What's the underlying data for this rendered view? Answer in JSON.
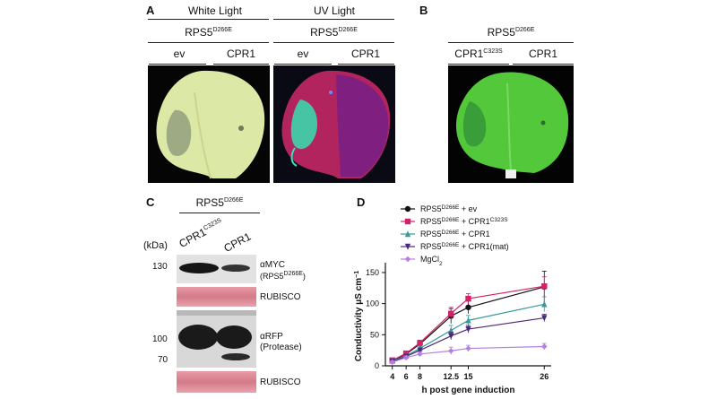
{
  "panelA": {
    "letter": "A",
    "white_light": "White Light",
    "uv_light": "UV Light",
    "construct_main": "RPS5",
    "construct_sup": "D266E",
    "ev": "ev",
    "cpr1": "CPR1"
  },
  "panelB": {
    "letter": "B",
    "construct_main": "RPS5",
    "construct_sup": "D266E",
    "left_main": "CPR1",
    "left_sup": "C323S",
    "right": "CPR1"
  },
  "panelC": {
    "letter": "C",
    "construct_main": "RPS5",
    "construct_sup": "D266E",
    "kda": "(kDa)",
    "lane1_main": "CPR1",
    "lane1_sup": "C323S",
    "lane2": "CPR1",
    "marker_130": "130",
    "marker_100": "100",
    "marker_70": "70",
    "amyc": "αMYC",
    "amyc_sub_main": "(RPS5",
    "amyc_sub_sup": "D266E",
    "amyc_sub_end": ")",
    "rubisco1": "RUBISCO",
    "arfp": "αRFP",
    "arfp_sub": "(Protease)",
    "rubisco2": "RUBISCO"
  },
  "panelD": {
    "letter": "D",
    "ylabel_main": "Conductivity μS cm",
    "ylabel_sup": "−1",
    "xlabel": "h post gene induction"
  },
  "chart_data": {
    "type": "line",
    "xlabel": "h post gene induction",
    "ylabel": "Conductivity μS cm−1",
    "xticks": [
      4,
      6,
      8,
      12.5,
      15,
      26
    ],
    "yticks": [
      0,
      50,
      100,
      150
    ],
    "ylim": [
      0,
      160
    ],
    "xlim": [
      3,
      27
    ],
    "grid": false,
    "legend_placement": "top-left",
    "series": [
      {
        "name": "RPS5D266E + ev",
        "legend_main": "RPS5",
        "legend_sup": "D266E",
        "legend_rest": " + ev",
        "legend_rest_sup": "",
        "legend_tail": "",
        "marker": "circle",
        "color": "#111111",
        "x": [
          4,
          6,
          8,
          12.5,
          15,
          26
        ],
        "y": [
          8,
          19,
          35,
          80,
          94,
          127
        ],
        "err": [
          3,
          3,
          4,
          12,
          10,
          25
        ]
      },
      {
        "name": "RPS5D266E + CPR1C323S",
        "legend_main": "RPS5",
        "legend_sup": "D266E",
        "legend_rest": " + CPR1",
        "legend_rest_sup": "C323S",
        "legend_tail": "",
        "marker": "square",
        "color": "#d4206a",
        "x": [
          4,
          6,
          8,
          12.5,
          15,
          26
        ],
        "y": [
          9,
          20,
          37,
          84,
          108,
          128
        ],
        "err": [
          3,
          3,
          4,
          10,
          8,
          15
        ]
      },
      {
        "name": "RPS5D266E + CPR1",
        "legend_main": "RPS5",
        "legend_sup": "D266E",
        "legend_rest": " + CPR1",
        "legend_rest_sup": "",
        "legend_tail": "",
        "marker": "triangle-up",
        "color": "#3a9a9a",
        "x": [
          4,
          6,
          8,
          12.5,
          15,
          26
        ],
        "y": [
          8,
          16,
          28,
          57,
          73,
          99
        ],
        "err": [
          3,
          3,
          4,
          8,
          8,
          12
        ]
      },
      {
        "name": "RPS5D266E + CPR1(mat)",
        "legend_main": "RPS5",
        "legend_sup": "D266E",
        "legend_rest": " + CPR1(mat)",
        "legend_rest_sup": "",
        "legend_tail": "",
        "marker": "triangle-down",
        "color": "#4a2a7a",
        "x": [
          4,
          6,
          8,
          12.5,
          15,
          26
        ],
        "y": [
          7,
          15,
          25,
          48,
          59,
          77
        ],
        "err": [
          3,
          3,
          4,
          6,
          6,
          6
        ]
      },
      {
        "name": "MgCl2",
        "legend_main": "MgCl",
        "legend_sup": "",
        "legend_rest": "",
        "legend_rest_sup": "",
        "legend_tail": "2",
        "marker": "diamond",
        "color": "#b37fe0",
        "x": [
          4,
          6,
          8,
          12.5,
          15,
          26
        ],
        "y": [
          6,
          13,
          19,
          24,
          28,
          31
        ],
        "err": [
          2,
          3,
          3,
          6,
          5,
          5
        ]
      }
    ]
  }
}
